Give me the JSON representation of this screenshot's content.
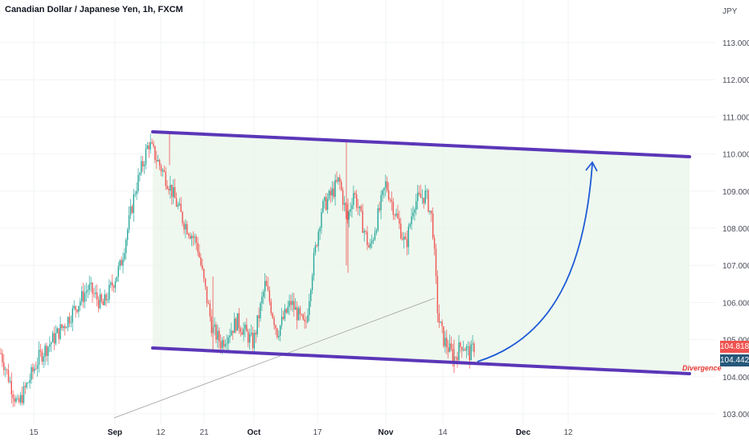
{
  "header": {
    "title": "Canadian Dollar / Japanese Yen, 1h, FXCM"
  },
  "chart_data": {
    "type": "candlestick",
    "symbol": "Canadian Dollar / Japanese Yen",
    "interval": "1h",
    "source": "FXCM",
    "y_axis": {
      "currency_label": "JPY",
      "ticks": [
        "103.000",
        "104.000",
        "105.000",
        "106.000",
        "107.000",
        "108.000",
        "109.000",
        "110.000",
        "111.000",
        "112.000",
        "113.000"
      ],
      "range": [
        102.8,
        113.6
      ]
    },
    "x_axis": {
      "ticks": [
        "15",
        "Sep",
        "12",
        "21",
        "Oct",
        "17",
        "Nov",
        "14",
        "Dec",
        "12"
      ]
    },
    "price_path": [
      [
        "15",
        104.7
      ],
      [
        "15",
        103.2
      ],
      [
        "15",
        104.5
      ],
      [
        "Sep",
        105.4
      ],
      [
        "Sep",
        106.4
      ],
      [
        "Sep",
        105.9
      ],
      [
        "Sep",
        107.0
      ],
      [
        "Sep",
        109.0
      ],
      [
        "12",
        110.3
      ],
      [
        "12",
        109.2
      ],
      [
        "21",
        108.2
      ],
      [
        "21",
        107.6
      ],
      [
        "21",
        105.3
      ],
      [
        "21",
        104.9
      ],
      [
        "21",
        105.5
      ],
      [
        "Oct",
        104.9
      ],
      [
        "Oct",
        106.5
      ],
      [
        "Oct",
        105.2
      ],
      [
        "Oct",
        106.0
      ],
      [
        "Oct",
        105.3
      ],
      [
        "17",
        106.8
      ],
      [
        "17",
        108.5
      ],
      [
        "17",
        108.9
      ],
      [
        "17",
        109.3
      ],
      [
        "17",
        108.2
      ],
      [
        "17",
        109.0
      ],
      [
        "17",
        107.4
      ],
      [
        "Nov",
        109.2
      ],
      [
        "Nov",
        108.2
      ],
      [
        "Nov",
        107.5
      ],
      [
        "Nov",
        108.7
      ],
      [
        "Nov",
        108.9
      ],
      [
        "14",
        108.2
      ],
      [
        "14",
        105.6
      ],
      [
        "14",
        105.0
      ],
      [
        "14",
        104.5
      ],
      [
        "14",
        104.9
      ],
      [
        "14",
        104.6
      ],
      [
        "14",
        104.818
      ]
    ],
    "last_prices": [
      {
        "value": "104.818",
        "color": "#ef5350"
      },
      {
        "value": "104.442",
        "color": "#26587a"
      }
    ],
    "channel": {
      "upper": {
        "start": [
          "12",
          110.55
        ],
        "end": [
          "12",
          110.0
        ]
      },
      "lower": {
        "start": [
          "12",
          104.7
        ],
        "end": [
          "12",
          104.05
        ]
      },
      "fill_color": "#e8f5e9",
      "line_color": "#5b36b8"
    },
    "projection_color": "#1e5bd6",
    "divergence_line_color": "#9e9e9e",
    "annotations": [
      {
        "text": "Divergence",
        "color": "#e53935"
      }
    ],
    "colors": {
      "up": "#26a69a",
      "down": "#ef5350"
    }
  }
}
